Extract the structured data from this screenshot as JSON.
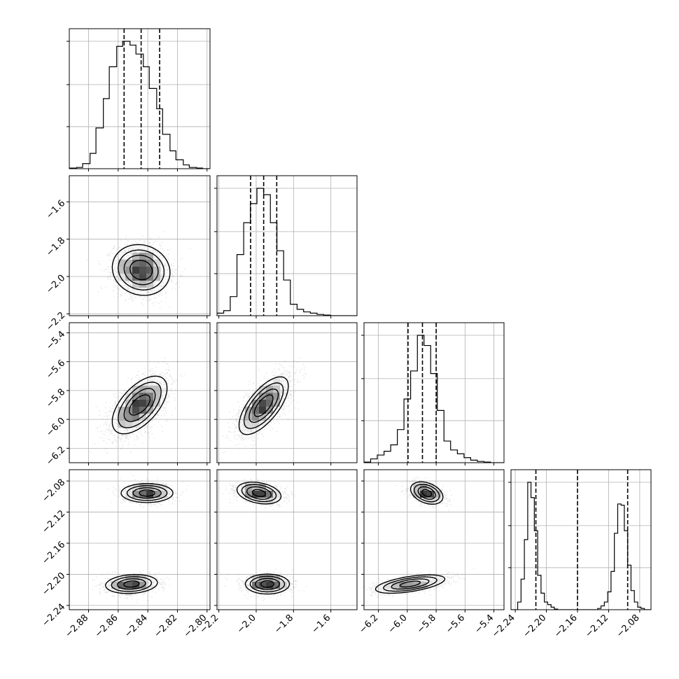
{
  "chart_data": {
    "type": "corner",
    "title": "",
    "parameters": [
      {
        "label": "",
        "range": [
          -2.893,
          -2.798
        ],
        "ticks": [
          -2.88,
          -2.86,
          -2.84,
          -2.82,
          -2.8
        ],
        "tick_labels": [
          "−2.88",
          "−2.86",
          "−2.84",
          "−2.82",
          "−2.80"
        ],
        "quantiles": [
          -2.856,
          -2.8445,
          -2.832
        ],
        "hist_edges": [
          -2.893,
          -2.888,
          -2.884,
          -2.879,
          -2.875,
          -2.87,
          -2.866,
          -2.861,
          -2.857,
          -2.852,
          -2.848,
          -2.843,
          -2.839,
          -2.834,
          -2.83,
          -2.825,
          -2.821,
          -2.816,
          -2.812,
          -2.807,
          -2.803,
          -2.798
        ],
        "hist_counts": [
          0.5,
          1,
          4,
          12,
          32,
          55,
          80,
          96,
          100,
          97,
          90,
          80,
          63,
          47,
          27,
          14,
          7,
          3,
          1,
          0.5,
          0
        ]
      },
      {
        "label": "",
        "range": [
          -2.21,
          -1.46
        ],
        "ticks": [
          -2.2,
          -2.0,
          -1.8,
          -1.6
        ],
        "tick_labels": [
          "−2.2",
          "−2.0",
          "−1.8",
          "−1.6"
        ],
        "quantiles": [
          -2.03,
          -1.96,
          -1.89
        ],
        "hist_edges": [
          -2.21,
          -2.174,
          -2.139,
          -2.103,
          -2.067,
          -2.031,
          -1.996,
          -1.96,
          -1.924,
          -1.889,
          -1.853,
          -1.817,
          -1.781,
          -1.746,
          -1.71,
          -1.674,
          -1.639,
          -1.603,
          -1.567,
          -1.531,
          -1.496,
          -1.46
        ],
        "hist_counts": [
          2,
          4,
          15,
          48,
          73,
          88,
          100,
          95,
          73,
          51,
          28,
          9,
          5,
          3,
          2,
          1,
          0.5,
          0,
          0,
          0,
          0
        ]
      },
      {
        "label": "",
        "range": [
          -6.3,
          -5.33
        ],
        "ticks": [
          -6.2,
          -6.0,
          -5.8,
          -5.6,
          -5.4
        ],
        "tick_labels": [
          "−6.2",
          "−6.0",
          "−5.8",
          "−5.6",
          "−5.4"
        ],
        "quantiles": [
          -5.995,
          -5.895,
          -5.8
        ],
        "hist_edges": [
          -6.3,
          -6.254,
          -6.208,
          -6.161,
          -6.115,
          -6.069,
          -6.023,
          -5.977,
          -5.93,
          -5.884,
          -5.838,
          -5.792,
          -5.746,
          -5.7,
          -5.653,
          -5.607,
          -5.561,
          -5.515,
          -5.469,
          -5.423,
          -5.376,
          -5.33
        ],
        "hist_counts": [
          0.5,
          3,
          6,
          9,
          14,
          26,
          50,
          72,
          100,
          92,
          70,
          41,
          17,
          10,
          7,
          4,
          2,
          1,
          0.5,
          0,
          0
        ]
      },
      {
        "label": "",
        "range": [
          -2.2455,
          -2.0655
        ],
        "ticks": [
          -2.24,
          -2.2,
          -2.16,
          -2.12,
          -2.08
        ],
        "tick_labels": [
          "−2.24",
          "−2.20",
          "−2.16",
          "−2.12",
          "−2.08"
        ],
        "quantiles": [
          -2.2135,
          -2.16,
          -2.0955
        ],
        "hist_edges": [
          -2.2455,
          -2.2412,
          -2.2369,
          -2.2326,
          -2.2283,
          -2.224,
          -2.2198,
          -2.2155,
          -2.2112,
          -2.2069,
          -2.2026,
          -2.1983,
          -2.194,
          -2.1898,
          -2.1855,
          -2.1812,
          -2.1769,
          -2.1726,
          -2.1683,
          -2.164,
          -2.1598,
          -2.1555,
          -2.1512,
          -2.1469,
          -2.1426,
          -2.1383,
          -2.134,
          -2.1298,
          -2.1255,
          -2.1212,
          -2.1169,
          -2.1126,
          -2.1083,
          -2.104,
          -2.0998,
          -2.0955,
          -2.0912,
          -2.0869,
          -2.0826,
          -2.0783,
          -2.074,
          -2.0698,
          -2.0655
        ],
        "hist_counts": [
          0,
          0,
          6,
          24,
          55,
          100,
          88,
          62,
          27,
          13,
          6,
          4,
          2,
          0.5,
          0,
          0,
          0,
          0,
          0,
          0,
          0,
          0,
          0,
          0,
          0,
          0,
          1,
          3,
          6,
          14,
          30,
          60,
          83,
          82,
          62,
          35,
          15,
          6,
          2,
          1,
          0
        ]
      }
    ],
    "pairs": [
      {
        "row": 1,
        "col": 0,
        "modes": [
          {
            "center": [
              -2.8445,
              -1.965
            ],
            "sd": [
              0.0091,
              0.064
            ],
            "rho": -0.1,
            "weight": 1.0
          }
        ],
        "contours": [
          {
            "center": [
              -2.8445,
              -1.965
            ],
            "radii": [
              [
                0.0075,
                0.052
              ],
              [
                0.0115,
                0.079
              ],
              [
                0.0155,
                0.107
              ],
              [
                0.0195,
                0.136
              ]
            ],
            "rho": -0.1
          }
        ]
      },
      {
        "row": 2,
        "col": 0,
        "modes": [
          {
            "center": [
              -2.8455,
              -5.9
            ],
            "sd": [
              0.0092,
              0.098
            ],
            "rho": 0.58,
            "weight": 1.0
          }
        ],
        "contours": [
          {
            "center": [
              -2.8455,
              -5.9
            ],
            "radii": [
              [
                0.007,
                0.07
              ],
              [
                0.0105,
                0.115
              ],
              [
                0.0145,
                0.158
              ],
              [
                0.0185,
                0.2
              ]
            ],
            "rho": 0.58
          }
        ]
      },
      {
        "row": 2,
        "col": 1,
        "modes": [
          {
            "center": [
              -1.96,
              -5.9
            ],
            "sd": [
              0.068,
              0.098
            ],
            "rho": 0.68,
            "weight": 1.0
          }
        ],
        "contours": [
          {
            "center": [
              -1.96,
              -5.905
            ],
            "radii": [
              [
                0.05,
                0.075
              ],
              [
                0.078,
                0.115
              ],
              [
                0.105,
                0.158
              ],
              [
                0.132,
                0.2
              ]
            ],
            "rho": 0.68
          }
        ]
      },
      {
        "row": 3,
        "col": 0,
        "modes": [
          {
            "center": [
              -2.8405,
              -2.0955
            ],
            "sd": [
              0.0085,
              0.006
            ],
            "rho": 0.0,
            "weight": 0.5
          },
          {
            "center": [
              -2.851,
              -2.2125
            ],
            "sd": [
              0.0085,
              0.006
            ],
            "rho": 0.15,
            "weight": 0.5
          }
        ],
        "contours": [
          {
            "center": [
              -2.8405,
              -2.0955
            ],
            "radii": [
              [
                0.0052,
                0.004
              ],
              [
                0.0095,
                0.0068
              ],
              [
                0.0135,
                0.0095
              ],
              [
                0.0175,
                0.0122
              ]
            ],
            "rho": 0.0
          },
          {
            "center": [
              -2.851,
              -2.2125
            ],
            "radii": [
              [
                0.0052,
                0.004
              ],
              [
                0.0095,
                0.0068
              ],
              [
                0.0135,
                0.0095
              ],
              [
                0.0175,
                0.0122
              ]
            ],
            "rho": 0.15
          }
        ]
      },
      {
        "row": 3,
        "col": 1,
        "modes": [
          {
            "center": [
              -1.985,
              -2.0955
            ],
            "sd": [
              0.062,
              0.0062
            ],
            "rho": -0.3,
            "weight": 0.5
          },
          {
            "center": [
              -1.94,
              -2.2125
            ],
            "sd": [
              0.062,
              0.006
            ],
            "rho": 0.0,
            "weight": 0.5
          }
        ],
        "contours": [
          {
            "center": [
              -1.985,
              -2.0955
            ],
            "radii": [
              [
                0.035,
                0.0045
              ],
              [
                0.065,
                0.008
              ],
              [
                0.092,
                0.011
              ],
              [
                0.118,
                0.014
              ]
            ],
            "rho": -0.3
          },
          {
            "center": [
              -1.94,
              -2.2125
            ],
            "radii": [
              [
                0.035,
                0.0042
              ],
              [
                0.065,
                0.0072
              ],
              [
                0.092,
                0.01
              ],
              [
                0.118,
                0.0128
              ]
            ],
            "rho": 0.0
          }
        ]
      },
      {
        "row": 3,
        "col": 2,
        "modes": [
          {
            "center": [
              -5.865,
              -2.0955
            ],
            "sd": [
              0.06,
              0.0064
            ],
            "rho": -0.35,
            "weight": 0.5
          },
          {
            "center": [
              -5.98,
              -2.2125
            ],
            "sd": [
              0.13,
              0.0055
            ],
            "rho": 0.55,
            "weight": 0.5
          }
        ],
        "contours": [
          {
            "center": [
              -5.865,
              -2.0955
            ],
            "radii": [
              [
                0.032,
                0.0045
              ],
              [
                0.06,
                0.008
              ],
              [
                0.087,
                0.0112
              ],
              [
                0.112,
                0.0144
              ]
            ],
            "rho": -0.35
          },
          {
            "center": [
              -5.98,
              -2.2125
            ],
            "radii": [
              [
                0.07,
                0.0038
              ],
              [
                0.13,
                0.0066
              ],
              [
                0.185,
                0.0092
              ],
              [
                0.24,
                0.0118
              ]
            ],
            "rho": 0.55
          }
        ]
      }
    ],
    "grid": true,
    "legend": "none"
  }
}
